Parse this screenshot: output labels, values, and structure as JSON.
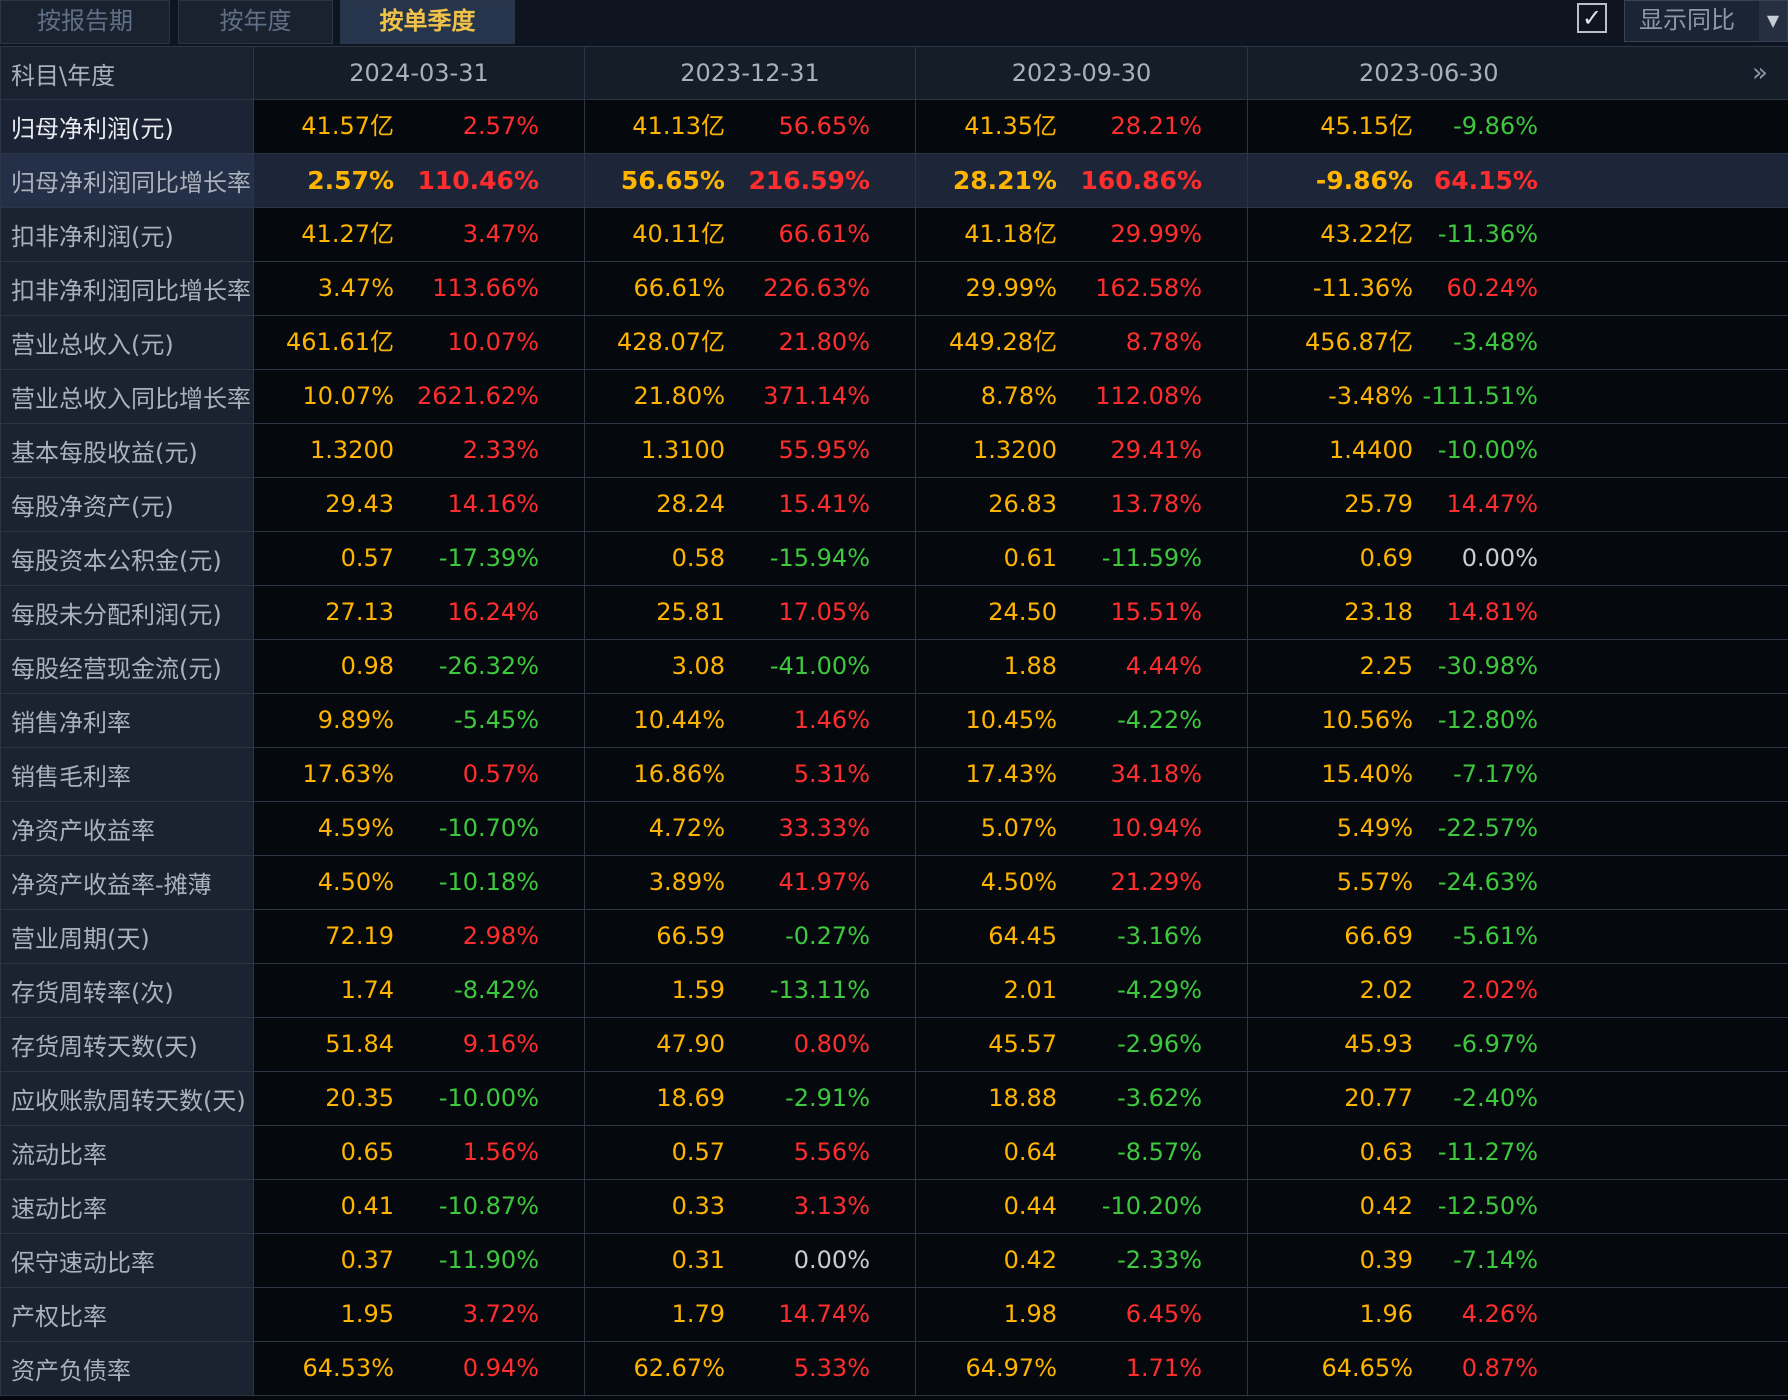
{
  "tabs": [
    "按报告期",
    "按年度",
    "按单季度"
  ],
  "active_tab": 2,
  "show_yoy": {
    "checked": true,
    "check_glyph": "✓",
    "label": "显示同比"
  },
  "header": {
    "first_col": "科目\\年度",
    "periods": [
      "2024-03-31",
      "2023-12-31",
      "2023-09-30",
      "2023-06-30"
    ],
    "more_icon": "»"
  },
  "rows": [
    {
      "name": "归母净利润(元)",
      "cells": [
        [
          "41.57亿",
          "2.57%",
          "up"
        ],
        [
          "41.13亿",
          "56.65%",
          "up"
        ],
        [
          "41.35亿",
          "28.21%",
          "up"
        ],
        [
          "45.15亿",
          "-9.86%",
          "down"
        ]
      ]
    },
    {
      "name": "归母净利润同比增长率",
      "cells": [
        [
          "2.57%",
          "110.46%",
          "up"
        ],
        [
          "56.65%",
          "216.59%",
          "up"
        ],
        [
          "28.21%",
          "160.86%",
          "up"
        ],
        [
          "-9.86%",
          "64.15%",
          "up"
        ]
      ]
    },
    {
      "name": "扣非净利润(元)",
      "cells": [
        [
          "41.27亿",
          "3.47%",
          "up"
        ],
        [
          "40.11亿",
          "66.61%",
          "up"
        ],
        [
          "41.18亿",
          "29.99%",
          "up"
        ],
        [
          "43.22亿",
          "-11.36%",
          "down"
        ]
      ]
    },
    {
      "name": "扣非净利润同比增长率",
      "cells": [
        [
          "3.47%",
          "113.66%",
          "up"
        ],
        [
          "66.61%",
          "226.63%",
          "up"
        ],
        [
          "29.99%",
          "162.58%",
          "up"
        ],
        [
          "-11.36%",
          "60.24%",
          "up"
        ]
      ]
    },
    {
      "name": "营业总收入(元)",
      "cells": [
        [
          "461.61亿",
          "10.07%",
          "up"
        ],
        [
          "428.07亿",
          "21.80%",
          "up"
        ],
        [
          "449.28亿",
          "8.78%",
          "up"
        ],
        [
          "456.87亿",
          "-3.48%",
          "down"
        ]
      ]
    },
    {
      "name": "营业总收入同比增长率",
      "cells": [
        [
          "10.07%",
          "2621.62%",
          "up"
        ],
        [
          "21.80%",
          "371.14%",
          "up"
        ],
        [
          "8.78%",
          "112.08%",
          "up"
        ],
        [
          "-3.48%",
          "-111.51%",
          "down"
        ]
      ]
    },
    {
      "name": "基本每股收益(元)",
      "cells": [
        [
          "1.3200",
          "2.33%",
          "up"
        ],
        [
          "1.3100",
          "55.95%",
          "up"
        ],
        [
          "1.3200",
          "29.41%",
          "up"
        ],
        [
          "1.4400",
          "-10.00%",
          "down"
        ]
      ]
    },
    {
      "name": "每股净资产(元)",
      "cells": [
        [
          "29.43",
          "14.16%",
          "up"
        ],
        [
          "28.24",
          "15.41%",
          "up"
        ],
        [
          "26.83",
          "13.78%",
          "up"
        ],
        [
          "25.79",
          "14.47%",
          "up"
        ]
      ]
    },
    {
      "name": "每股资本公积金(元)",
      "cells": [
        [
          "0.57",
          "-17.39%",
          "down"
        ],
        [
          "0.58",
          "-15.94%",
          "down"
        ],
        [
          "0.61",
          "-11.59%",
          "down"
        ],
        [
          "0.69",
          "0.00%",
          "flat"
        ]
      ]
    },
    {
      "name": "每股未分配利润(元)",
      "cells": [
        [
          "27.13",
          "16.24%",
          "up"
        ],
        [
          "25.81",
          "17.05%",
          "up"
        ],
        [
          "24.50",
          "15.51%",
          "up"
        ],
        [
          "23.18",
          "14.81%",
          "up"
        ]
      ]
    },
    {
      "name": "每股经营现金流(元)",
      "cells": [
        [
          "0.98",
          "-26.32%",
          "down"
        ],
        [
          "3.08",
          "-41.00%",
          "down"
        ],
        [
          "1.88",
          "4.44%",
          "up"
        ],
        [
          "2.25",
          "-30.98%",
          "down"
        ]
      ]
    },
    {
      "name": "销售净利率",
      "cells": [
        [
          "9.89%",
          "-5.45%",
          "down"
        ],
        [
          "10.44%",
          "1.46%",
          "up"
        ],
        [
          "10.45%",
          "-4.22%",
          "down"
        ],
        [
          "10.56%",
          "-12.80%",
          "down"
        ]
      ]
    },
    {
      "name": "销售毛利率",
      "cells": [
        [
          "17.63%",
          "0.57%",
          "up"
        ],
        [
          "16.86%",
          "5.31%",
          "up"
        ],
        [
          "17.43%",
          "34.18%",
          "up"
        ],
        [
          "15.40%",
          "-7.17%",
          "down"
        ]
      ]
    },
    {
      "name": "净资产收益率",
      "cells": [
        [
          "4.59%",
          "-10.70%",
          "down"
        ],
        [
          "4.72%",
          "33.33%",
          "up"
        ],
        [
          "5.07%",
          "10.94%",
          "up"
        ],
        [
          "5.49%",
          "-22.57%",
          "down"
        ]
      ]
    },
    {
      "name": "净资产收益率-摊薄",
      "cells": [
        [
          "4.50%",
          "-10.18%",
          "down"
        ],
        [
          "3.89%",
          "41.97%",
          "up"
        ],
        [
          "4.50%",
          "21.29%",
          "up"
        ],
        [
          "5.57%",
          "-24.63%",
          "down"
        ]
      ]
    },
    {
      "name": "营业周期(天)",
      "cells": [
        [
          "72.19",
          "2.98%",
          "up"
        ],
        [
          "66.59",
          "-0.27%",
          "down"
        ],
        [
          "64.45",
          "-3.16%",
          "down"
        ],
        [
          "66.69",
          "-5.61%",
          "down"
        ]
      ]
    },
    {
      "name": "存货周转率(次)",
      "cells": [
        [
          "1.74",
          "-8.42%",
          "down"
        ],
        [
          "1.59",
          "-13.11%",
          "down"
        ],
        [
          "2.01",
          "-4.29%",
          "down"
        ],
        [
          "2.02",
          "2.02%",
          "up"
        ]
      ]
    },
    {
      "name": "存货周转天数(天)",
      "cells": [
        [
          "51.84",
          "9.16%",
          "up"
        ],
        [
          "47.90",
          "0.80%",
          "up"
        ],
        [
          "45.57",
          "-2.96%",
          "down"
        ],
        [
          "45.93",
          "-6.97%",
          "down"
        ]
      ]
    },
    {
      "name": "应收账款周转天数(天)",
      "cells": [
        [
          "20.35",
          "-10.00%",
          "down"
        ],
        [
          "18.69",
          "-2.91%",
          "down"
        ],
        [
          "18.88",
          "-3.62%",
          "down"
        ],
        [
          "20.77",
          "-2.40%",
          "down"
        ]
      ]
    },
    {
      "name": "流动比率",
      "cells": [
        [
          "0.65",
          "1.56%",
          "up"
        ],
        [
          "0.57",
          "5.56%",
          "up"
        ],
        [
          "0.64",
          "-8.57%",
          "down"
        ],
        [
          "0.63",
          "-11.27%",
          "down"
        ]
      ]
    },
    {
      "name": "速动比率",
      "cells": [
        [
          "0.41",
          "-10.87%",
          "down"
        ],
        [
          "0.33",
          "3.13%",
          "up"
        ],
        [
          "0.44",
          "-10.20%",
          "down"
        ],
        [
          "0.42",
          "-12.50%",
          "down"
        ]
      ]
    },
    {
      "name": "保守速动比率",
      "cells": [
        [
          "0.37",
          "-11.90%",
          "down"
        ],
        [
          "0.31",
          "0.00%",
          "flat"
        ],
        [
          "0.42",
          "-2.33%",
          "down"
        ],
        [
          "0.39",
          "-7.14%",
          "down"
        ]
      ]
    },
    {
      "name": "产权比率",
      "cells": [
        [
          "1.95",
          "3.72%",
          "up"
        ],
        [
          "1.79",
          "14.74%",
          "up"
        ],
        [
          "1.98",
          "6.45%",
          "up"
        ],
        [
          "1.96",
          "4.26%",
          "up"
        ]
      ]
    },
    {
      "name": "资产负债率",
      "cells": [
        [
          "64.53%",
          "0.94%",
          "up"
        ],
        [
          "62.67%",
          "5.33%",
          "up"
        ],
        [
          "64.97%",
          "1.71%",
          "up"
        ],
        [
          "64.65%",
          "0.87%",
          "up"
        ]
      ]
    }
  ],
  "highlighted_row": 1,
  "colors": {
    "value": "#ffb400",
    "up": "#ff2d2d",
    "down": "#3ec83e",
    "flat": "#c9cdd3",
    "active_tab": "#f0c24a"
  }
}
